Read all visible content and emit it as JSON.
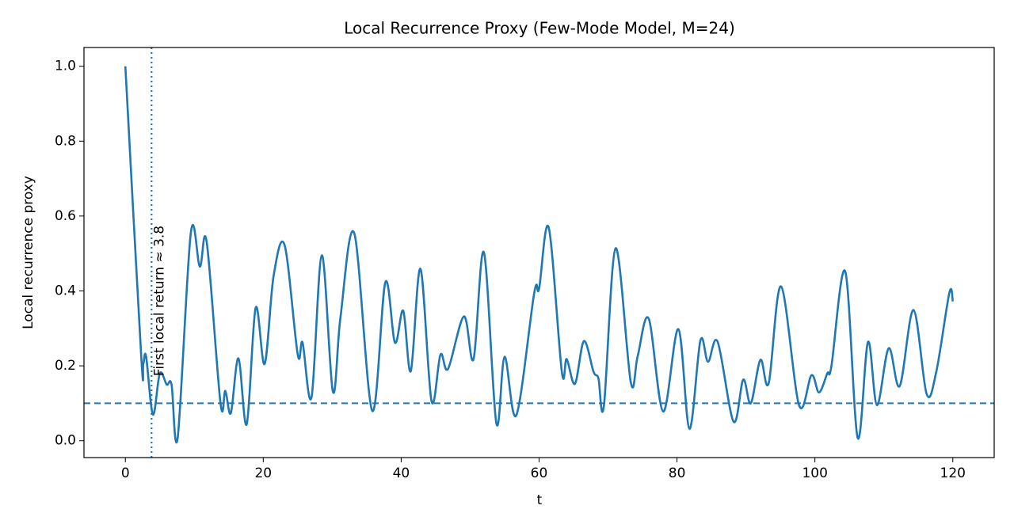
{
  "chart_data": {
    "type": "line",
    "title": "Local Recurrence Proxy (Few-Mode Model, M=24)",
    "x_label": "t",
    "y_label": "Local recurrence proxy",
    "x": [
      0,
      2.3,
      2.6,
      3.0,
      4.0,
      5.0,
      6.0,
      6.7,
      7.6,
      9.5,
      10.8,
      11.8,
      13.8,
      14.5,
      15.3,
      16.4,
      17.6,
      18.9,
      20.2,
      21.5,
      23.1,
      25.0,
      25.7,
      27.0,
      28.5,
      30.1,
      31.2,
      33.2,
      35.8,
      37.7,
      39.1,
      40.3,
      41.4,
      42.8,
      44.4,
      45.7,
      46.8,
      49.1,
      50.5,
      52.0,
      53.8,
      55.0,
      56.7,
      59.3,
      60.0,
      61.4,
      63.3,
      64.0,
      65.2,
      66.5,
      67.9,
      68.6,
      69.4,
      71.1,
      73.3,
      74.3,
      75.9,
      78.0,
      80.2,
      81.8,
      83.4,
      84.5,
      85.9,
      88.2,
      89.6,
      90.7,
      92.1,
      93.3,
      95.1,
      97.7,
      99.5,
      100.6,
      101.8,
      102.4,
      104.4,
      106.2,
      107.7,
      109.0,
      110.7,
      112.3,
      114.3,
      116.2,
      117.6,
      119.5,
      120
    ],
    "series": [
      {
        "name": "Local recurrence proxy",
        "color": "#1f77b4",
        "values": [
          1.0,
          0.226,
          0.205,
          0.226,
          0.07,
          0.18,
          0.15,
          0.15,
          0.01,
          0.556,
          0.465,
          0.53,
          0.1,
          0.133,
          0.074,
          0.22,
          0.044,
          0.355,
          0.205,
          0.44,
          0.522,
          0.23,
          0.262,
          0.116,
          0.495,
          0.131,
          0.33,
          0.554,
          0.08,
          0.423,
          0.262,
          0.347,
          0.186,
          0.459,
          0.106,
          0.23,
          0.192,
          0.332,
          0.218,
          0.503,
          0.047,
          0.224,
          0.068,
          0.395,
          0.406,
          0.569,
          0.184,
          0.218,
          0.152,
          0.266,
          0.184,
          0.167,
          0.093,
          0.514,
          0.156,
          0.226,
          0.326,
          0.078,
          0.298,
          0.032,
          0.268,
          0.211,
          0.264,
          0.051,
          0.163,
          0.1,
          0.216,
          0.154,
          0.412,
          0.095,
          0.175,
          0.129,
          0.18,
          0.2,
          0.452,
          0.008,
          0.264,
          0.095,
          0.247,
          0.146,
          0.349,
          0.125,
          0.184,
          0.395,
          0.372
        ]
      }
    ],
    "hline": 0.1,
    "vline": 3.8,
    "annotation": "First local return ≈ 3.8",
    "xlim": [
      -6,
      126
    ],
    "ylim": [
      -0.045,
      1.05
    ],
    "xticks": [
      0,
      20,
      40,
      60,
      80,
      100,
      120
    ],
    "yticks": [
      {
        "value": 0,
        "label": "0.0"
      },
      0.2,
      0.4,
      0.6,
      0.8,
      {
        "value": 1,
        "label": "1.0"
      }
    ],
    "grid": false
  }
}
